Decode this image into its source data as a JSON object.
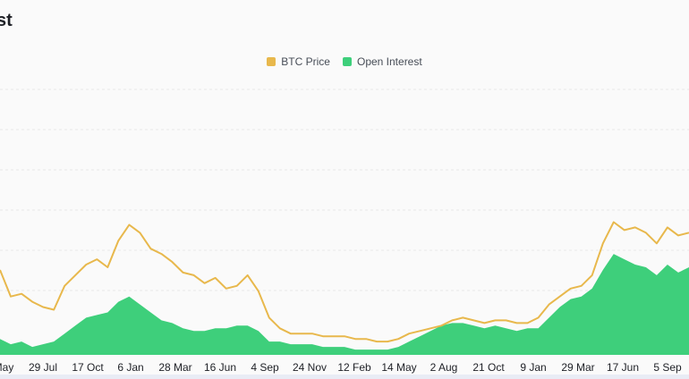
{
  "title_fragment": "st",
  "colors": {
    "price": "#e8b84c",
    "oi": "#3ecf7b",
    "grid": "#e8e8e8"
  },
  "chart_data": {
    "type": "area",
    "x_tick_labels": [
      "May",
      "29 Jul",
      "17 Oct",
      "6 Jan",
      "28 Mar",
      "16 Jun",
      "4 Sep",
      "24 Nov",
      "12 Feb",
      "14 May",
      "2 Aug",
      "21 Oct",
      "9 Jan",
      "29 Mar",
      "17 Jun",
      "5 Sep"
    ],
    "legend": [
      {
        "name": "BTC Price",
        "color": "#e8b84c"
      },
      {
        "name": "Open Interest",
        "color": "#3ecf7b"
      }
    ],
    "grid": true,
    "ylim": [
      0,
      100
    ],
    "x": [
      0,
      1,
      2,
      3,
      4,
      5,
      6,
      7,
      8,
      9,
      10,
      11,
      12,
      13,
      14,
      15,
      16,
      17,
      18,
      19,
      20,
      21,
      22,
      23,
      24,
      25,
      26,
      27,
      28,
      29,
      30,
      31,
      32,
      33,
      34,
      35,
      36,
      37,
      38,
      39,
      40,
      41,
      42,
      43,
      44,
      45,
      46,
      47,
      48,
      49,
      50,
      51,
      52,
      53,
      54,
      55,
      56,
      57,
      58,
      59,
      60,
      61,
      62,
      63,
      64
    ],
    "series": [
      {
        "name": "BTC Price",
        "values": [
          32,
          22,
          23,
          20,
          18,
          17,
          26,
          30,
          34,
          36,
          33,
          43,
          49,
          46,
          40,
          38,
          35,
          31,
          30,
          27,
          29,
          25,
          26,
          30,
          24,
          14,
          10,
          8,
          8,
          8,
          7,
          7,
          7,
          6,
          6,
          5,
          5,
          6,
          8,
          9,
          10,
          11,
          13,
          14,
          13,
          12,
          13,
          13,
          12,
          12,
          14,
          19,
          22,
          25,
          26,
          30,
          42,
          50,
          47,
          48,
          46,
          42,
          48,
          45,
          46
        ]
      },
      {
        "name": "Open Interest",
        "values": [
          6,
          4,
          5,
          3,
          4,
          5,
          8,
          11,
          14,
          15,
          16,
          20,
          22,
          19,
          16,
          13,
          12,
          10,
          9,
          9,
          10,
          10,
          11,
          11,
          9,
          5,
          5,
          4,
          4,
          4,
          3,
          3,
          3,
          2,
          2,
          2,
          2,
          3,
          5,
          7,
          9,
          11,
          12,
          12,
          11,
          10,
          11,
          10,
          9,
          10,
          10,
          14,
          18,
          21,
          22,
          25,
          32,
          38,
          36,
          34,
          33,
          30,
          34,
          31,
          33
        ]
      }
    ]
  }
}
